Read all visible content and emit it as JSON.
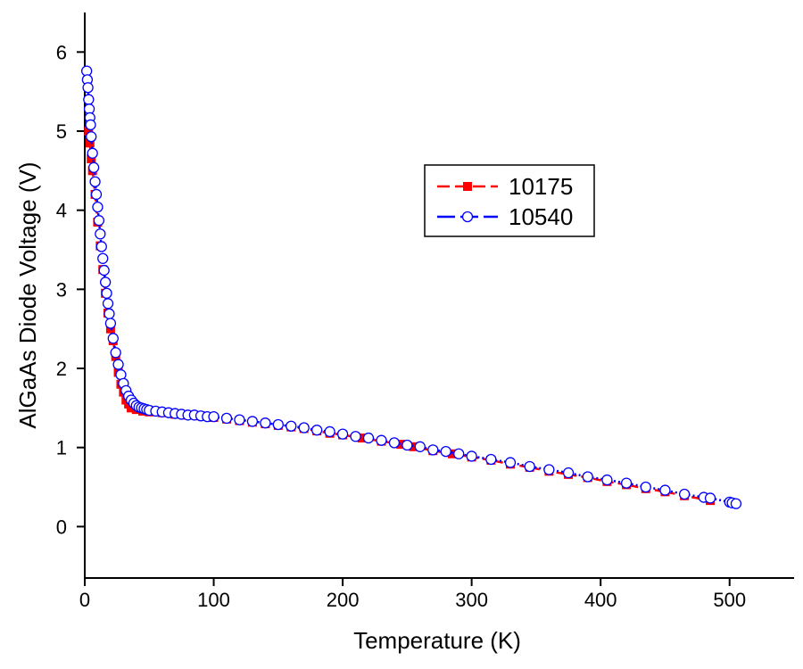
{
  "chart_data": {
    "type": "line",
    "x_label": "Temperature (K)",
    "y_label": "AlGaAs Diode Voltage (V)",
    "xlim": [
      0,
      550
    ],
    "xticks": [
      0,
      100,
      200,
      300,
      400,
      500
    ],
    "ylim": [
      -0.65,
      6.5
    ],
    "yticks": [
      0,
      1,
      2,
      3,
      4,
      5,
      6
    ],
    "legend": "upper right",
    "series": [
      {
        "name": "10175",
        "color": "#ff0000",
        "marker": "square",
        "line_style": "dashed",
        "x": [
          3,
          4,
          5,
          6,
          8,
          10,
          12,
          14,
          16,
          18,
          20,
          22,
          24,
          26,
          28,
          30,
          32,
          34,
          36,
          40,
          45,
          50,
          60,
          70,
          80,
          90,
          100,
          110,
          120,
          130,
          140,
          150,
          160,
          170,
          180,
          190,
          200,
          215,
          230,
          245,
          255,
          270,
          285,
          300,
          315,
          330,
          345,
          360,
          375,
          390,
          405,
          420,
          435,
          450,
          465,
          485
        ],
        "values": [
          5.0,
          4.85,
          4.65,
          4.5,
          4.2,
          3.85,
          3.55,
          3.25,
          2.95,
          2.7,
          2.5,
          2.35,
          2.15,
          1.95,
          1.8,
          1.7,
          1.6,
          1.55,
          1.5,
          1.48,
          1.46,
          1.45,
          1.44,
          1.42,
          1.41,
          1.4,
          1.38,
          1.36,
          1.34,
          1.32,
          1.3,
          1.28,
          1.26,
          1.24,
          1.21,
          1.18,
          1.16,
          1.12,
          1.08,
          1.04,
          1.01,
          0.96,
          0.92,
          0.88,
          0.84,
          0.79,
          0.75,
          0.7,
          0.66,
          0.62,
          0.57,
          0.53,
          0.48,
          0.44,
          0.39,
          0.33
        ]
      },
      {
        "name": "10540",
        "color": "#0000ff",
        "marker": "circle",
        "line_style": "dotted",
        "x": [
          1.5,
          2,
          2.5,
          3,
          3.5,
          4,
          4.5,
          5,
          6,
          7,
          8,
          9,
          10,
          11,
          12,
          13,
          14,
          15,
          16,
          17,
          18,
          19,
          20,
          22,
          24,
          26,
          28,
          30,
          32,
          34,
          36,
          38,
          40,
          42,
          44,
          46,
          48,
          50,
          55,
          60,
          65,
          70,
          75,
          80,
          85,
          90,
          95,
          100,
          110,
          120,
          130,
          140,
          150,
          160,
          170,
          180,
          190,
          200,
          210,
          220,
          230,
          240,
          250,
          260,
          270,
          280,
          290,
          300,
          315,
          330,
          345,
          360,
          375,
          390,
          405,
          420,
          435,
          450,
          465,
          480,
          485,
          500,
          502,
          505
        ],
        "values": [
          5.76,
          5.65,
          5.55,
          5.4,
          5.28,
          5.17,
          5.08,
          4.93,
          4.72,
          4.54,
          4.36,
          4.2,
          4.04,
          3.87,
          3.7,
          3.54,
          3.39,
          3.24,
          3.09,
          2.95,
          2.82,
          2.69,
          2.57,
          2.38,
          2.2,
          2.05,
          1.92,
          1.81,
          1.72,
          1.65,
          1.6,
          1.56,
          1.53,
          1.51,
          1.5,
          1.49,
          1.48,
          1.47,
          1.46,
          1.45,
          1.44,
          1.43,
          1.42,
          1.41,
          1.41,
          1.4,
          1.39,
          1.39,
          1.37,
          1.35,
          1.33,
          1.31,
          1.29,
          1.27,
          1.25,
          1.22,
          1.2,
          1.17,
          1.14,
          1.12,
          1.09,
          1.06,
          1.03,
          1.01,
          0.97,
          0.95,
          0.92,
          0.89,
          0.85,
          0.81,
          0.76,
          0.72,
          0.68,
          0.63,
          0.59,
          0.55,
          0.5,
          0.46,
          0.41,
          0.37,
          0.36,
          0.31,
          0.3,
          0.29
        ]
      }
    ]
  }
}
